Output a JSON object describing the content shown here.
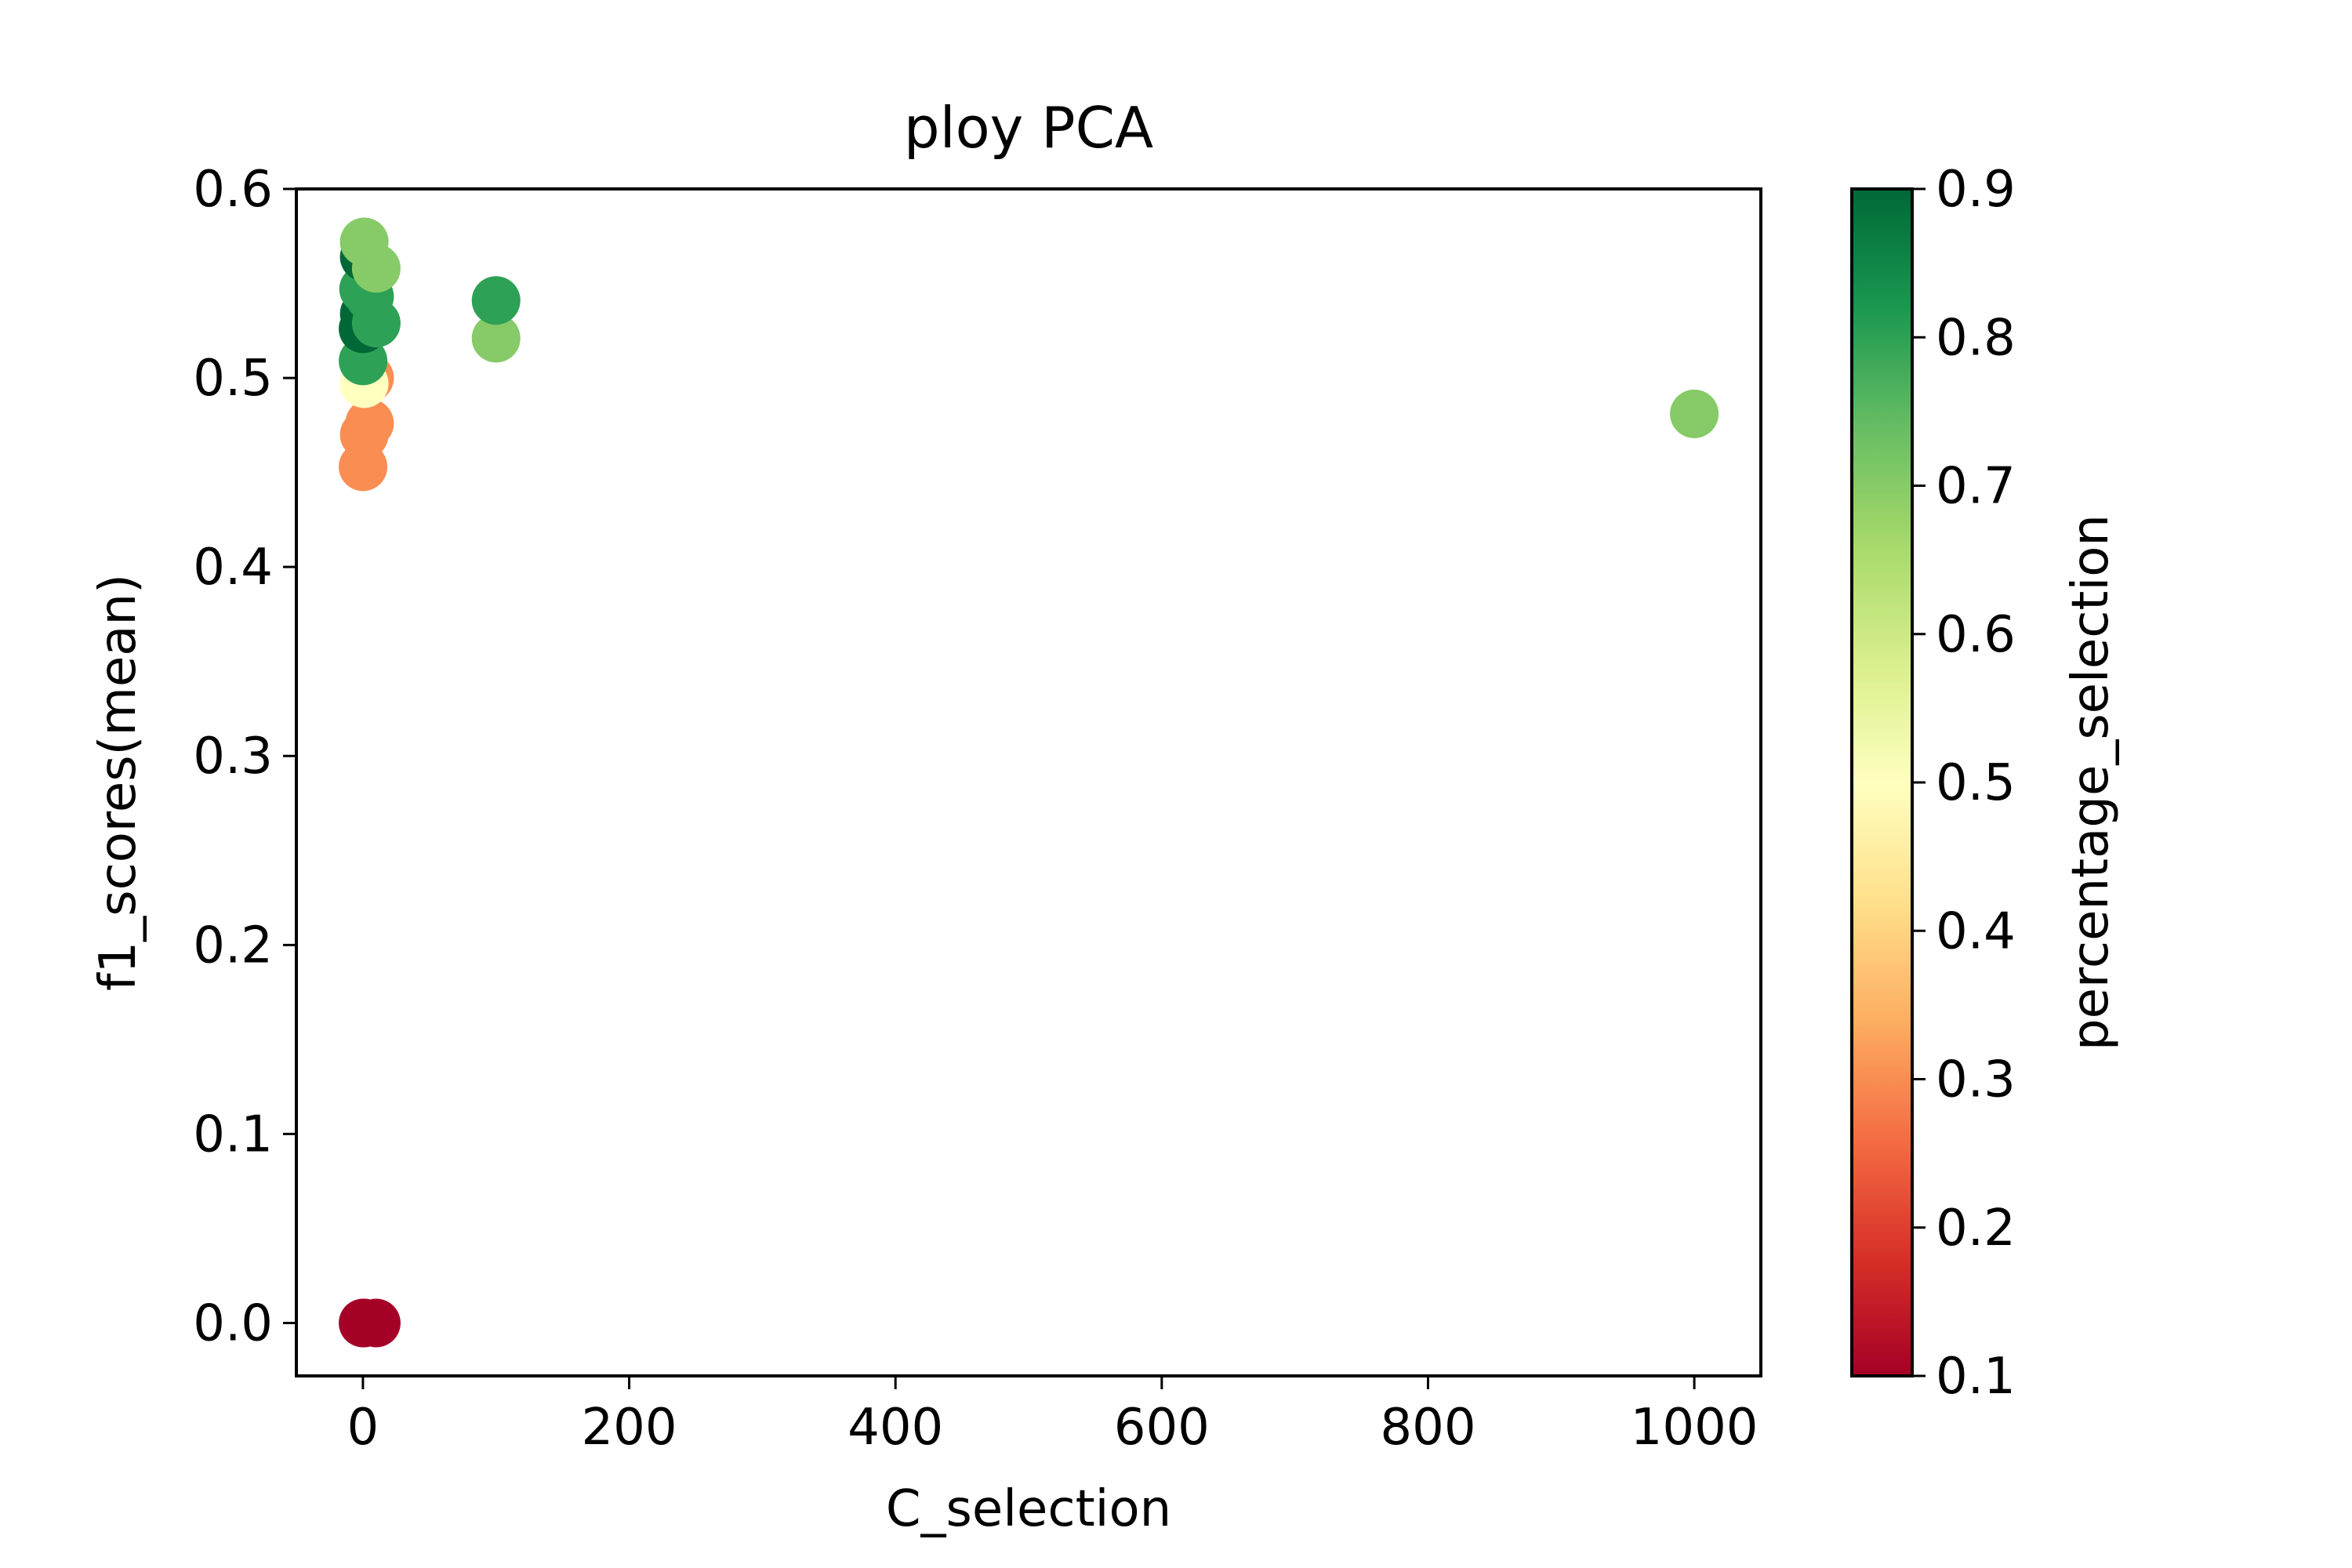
{
  "chart_data": {
    "type": "scatter",
    "title": "ploy PCA",
    "xlabel": "C_selection",
    "ylabel": "f1_scores(mean)",
    "xlim": [
      -50,
      1050
    ],
    "ylim": [
      -0.028,
      0.6
    ],
    "xticks": [
      0,
      200,
      400,
      600,
      800,
      1000
    ],
    "xtick_labels": [
      "0",
      "200",
      "400",
      "600",
      "800",
      "1000"
    ],
    "yticks": [
      0.0,
      0.1,
      0.2,
      0.3,
      0.4,
      0.5,
      0.6
    ],
    "ytick_labels": [
      "0.0",
      "0.1",
      "0.2",
      "0.3",
      "0.4",
      "0.5",
      "0.6"
    ],
    "grid": false,
    "colorbar": {
      "label": "percentage_selection",
      "colormap": "RdYlGn",
      "range": [
        0.1,
        0.9
      ],
      "ticks": [
        0.1,
        0.2,
        0.3,
        0.4,
        0.5,
        0.6,
        0.7,
        0.8,
        0.9
      ],
      "tick_labels": [
        "0.1",
        "0.2",
        "0.3",
        "0.4",
        "0.5",
        "0.6",
        "0.7",
        "0.8",
        "0.9"
      ],
      "stops": [
        "#a50026",
        "#d73027",
        "#f46d43",
        "#fdae61",
        "#fee08b",
        "#ffffbf",
        "#d9ef8b",
        "#a6d96a",
        "#66bd63",
        "#1a9850",
        "#006837"
      ]
    },
    "points": [
      {
        "x": 0.1,
        "y": 0.0,
        "c": 0.1
      },
      {
        "x": 1,
        "y": 0.0,
        "c": 0.1
      },
      {
        "x": 10,
        "y": 0.0,
        "c": 0.1
      },
      {
        "x": 0.1,
        "y": 0.453,
        "c": 0.3
      },
      {
        "x": 1,
        "y": 0.47,
        "c": 0.3
      },
      {
        "x": 5,
        "y": 0.476,
        "c": 0.3
      },
      {
        "x": 5,
        "y": 0.5,
        "c": 0.3
      },
      {
        "x": 1,
        "y": 0.497,
        "c": 0.5
      },
      {
        "x": 0.1,
        "y": 0.509,
        "c": 0.8
      },
      {
        "x": 0.1,
        "y": 0.526,
        "c": 0.9
      },
      {
        "x": 1,
        "y": 0.534,
        "c": 0.9
      },
      {
        "x": 5,
        "y": 0.543,
        "c": 0.8
      },
      {
        "x": 0.5,
        "y": 0.547,
        "c": 0.8
      },
      {
        "x": 1,
        "y": 0.564,
        "c": 0.9
      },
      {
        "x": 1,
        "y": 0.572,
        "c": 0.7
      },
      {
        "x": 10,
        "y": 0.529,
        "c": 0.8
      },
      {
        "x": 10,
        "y": 0.558,
        "c": 0.7
      },
      {
        "x": 100,
        "y": 0.521,
        "c": 0.7
      },
      {
        "x": 100,
        "y": 0.541,
        "c": 0.8
      },
      {
        "x": 1000,
        "y": 0.481,
        "c": 0.7
      }
    ]
  }
}
